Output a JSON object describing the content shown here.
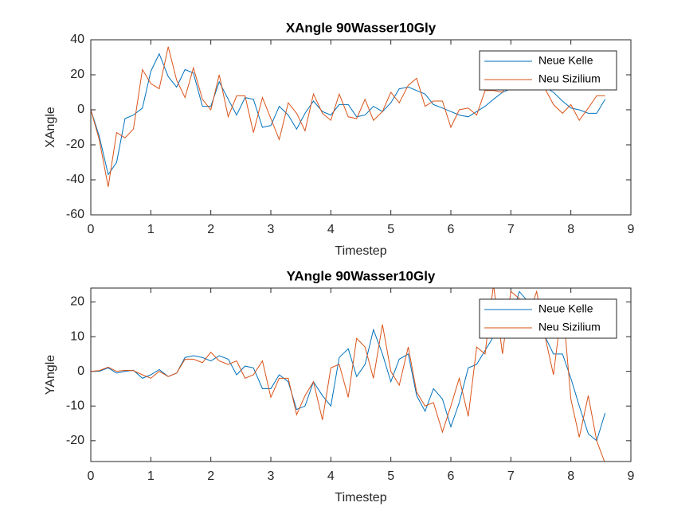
{
  "chart_data": [
    {
      "type": "line",
      "title": "XAngle 90Wasser10Gly",
      "xlabel": "Timestep",
      "ylabel": "XAngle",
      "x": [
        0,
        0.14,
        0.29,
        0.43,
        0.57,
        0.71,
        0.86,
        1,
        1.14,
        1.29,
        1.43,
        1.57,
        1.71,
        1.86,
        2,
        2.14,
        2.29,
        2.43,
        2.57,
        2.71,
        2.86,
        3,
        3.14,
        3.29,
        3.43,
        3.57,
        3.71,
        3.86,
        4,
        4.14,
        4.29,
        4.43,
        4.57,
        4.71,
        4.86,
        5,
        5.14,
        5.29,
        5.43,
        5.57,
        5.71,
        5.86,
        6,
        6.14,
        6.29,
        6.43,
        6.57,
        6.71,
        6.86,
        7,
        7.14,
        7.29,
        7.43,
        7.57,
        7.71,
        7.86,
        8,
        8.14,
        8.29,
        8.43,
        8.57
      ],
      "series": [
        {
          "name": "Neue Kelle",
          "color": "#0072bd",
          "values": [
            0,
            -15,
            -37,
            -30,
            -5,
            -3,
            1,
            22,
            32,
            19,
            13,
            23,
            21,
            2,
            2,
            16,
            6,
            -3,
            7,
            6,
            -10,
            -9,
            2,
            -3,
            -11,
            -2,
            5,
            -1,
            -3,
            3,
            3,
            -4,
            -3,
            2,
            -1,
            4,
            12,
            13,
            11,
            9,
            3,
            1,
            -1,
            -3,
            -4,
            -1,
            2,
            6,
            10,
            12,
            13,
            14,
            14,
            13,
            10,
            5,
            1,
            0,
            -2,
            -2,
            6
          ]
        },
        {
          "name": "Neu Sizilium",
          "color": "#d95319",
          "values": [
            0,
            -17,
            -44,
            -13,
            -16,
            -11,
            23,
            15,
            12,
            36,
            17,
            7,
            24,
            6,
            0,
            20,
            -4,
            8,
            8,
            -13,
            7,
            -5,
            -17,
            4,
            -2,
            -12,
            9,
            -2,
            -6,
            9,
            -4,
            -5,
            6,
            -6,
            -1,
            10,
            4,
            14,
            18,
            2,
            5,
            5,
            -10,
            0,
            1,
            -3,
            11,
            11,
            10,
            21,
            18,
            20,
            19,
            12,
            3,
            -2,
            3,
            -6,
            1,
            8,
            8
          ]
        }
      ],
      "xlim": [
        0,
        9
      ],
      "xticks": [
        0,
        1,
        2,
        3,
        4,
        5,
        6,
        7,
        8,
        9
      ],
      "ylim": [
        -60,
        40
      ],
      "yticks": [
        -60,
        -40,
        -20,
        0,
        20,
        40
      ],
      "legend": "upper right"
    },
    {
      "type": "line",
      "title": "YAngle 90Wasser10Gly",
      "xlabel": "Timestep",
      "ylabel": "YAngle",
      "x": [
        0,
        0.14,
        0.29,
        0.43,
        0.57,
        0.71,
        0.86,
        1,
        1.14,
        1.29,
        1.43,
        1.57,
        1.71,
        1.86,
        2,
        2.14,
        2.29,
        2.43,
        2.57,
        2.71,
        2.86,
        3,
        3.14,
        3.29,
        3.43,
        3.57,
        3.71,
        3.86,
        4,
        4.14,
        4.29,
        4.43,
        4.57,
        4.71,
        4.86,
        5,
        5.14,
        5.29,
        5.43,
        5.57,
        5.71,
        5.86,
        6,
        6.14,
        6.29,
        6.43,
        6.57,
        6.71,
        6.86,
        7,
        7.14,
        7.29,
        7.43,
        7.57,
        7.71,
        7.86,
        8,
        8.14,
        8.29,
        8.43,
        8.57
      ],
      "series": [
        {
          "name": "Neue Kelle",
          "color": "#0072bd",
          "values": [
            0,
            0,
            1,
            -0.5,
            0,
            0.3,
            -2,
            -1,
            0.5,
            -1.5,
            -0.5,
            4,
            4.5,
            4,
            3,
            4.5,
            3.5,
            -1,
            1.5,
            1,
            -5,
            -5,
            -1,
            -3,
            -11,
            -10,
            -3,
            -7,
            -10,
            4,
            6.5,
            -1.5,
            2,
            12,
            5,
            -3,
            3.5,
            5,
            -7,
            -11.5,
            -5,
            -8,
            -16,
            -9,
            1,
            2,
            6,
            10,
            20,
            15,
            23,
            20,
            12,
            10,
            5,
            5,
            -2,
            -10,
            -18,
            -20,
            -12
          ]
        },
        {
          "name": "Neu Sizilium",
          "color": "#d95319",
          "values": [
            0,
            0.2,
            1.2,
            0,
            0.3,
            0.2,
            -1,
            -2,
            0,
            -1.5,
            -0.5,
            3.5,
            3.5,
            2.5,
            5.5,
            3,
            2,
            3,
            -2,
            -1,
            3,
            -7.5,
            -2,
            -2,
            -12.5,
            -7,
            -3,
            -14,
            1,
            2,
            -7.5,
            9.5,
            7,
            -2,
            13.5,
            0,
            -4,
            7,
            -6,
            -10,
            -9,
            -17.5,
            -10,
            -2,
            -13,
            7,
            5,
            25,
            5,
            23,
            21,
            16,
            23,
            10,
            -1,
            20,
            -8,
            -19,
            -7,
            -20,
            -26.5
          ]
        }
      ],
      "xlim": [
        0,
        9
      ],
      "xticks": [
        0,
        1,
        2,
        3,
        4,
        5,
        6,
        7,
        8,
        9
      ],
      "ylim": [
        -26,
        24
      ],
      "yticks": [
        -20,
        -10,
        0,
        10,
        20
      ],
      "legend": "upper right"
    }
  ]
}
